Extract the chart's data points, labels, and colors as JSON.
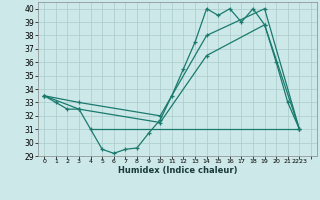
{
  "title": "",
  "xlabel": "Humidex (Indice chaleur)",
  "background_color": "#cde8e8",
  "grid_color": "#aacccc",
  "line_color": "#1a7a6e",
  "xlim": [
    -0.5,
    23.5
  ],
  "ylim": [
    29,
    40.5
  ],
  "yticks": [
    29,
    30,
    31,
    32,
    33,
    34,
    35,
    36,
    37,
    38,
    39,
    40
  ],
  "xtick_positions": [
    0,
    1,
    2,
    3,
    4,
    5,
    6,
    7,
    8,
    9,
    10,
    11,
    12,
    13,
    14,
    15,
    16,
    17,
    18,
    19,
    20,
    21,
    22,
    23
  ],
  "xtick_labels": [
    "0",
    "1",
    "2",
    "3",
    "4",
    "5",
    "6",
    "7",
    "8",
    "9",
    "10",
    "11",
    "12",
    "13",
    "14",
    "15",
    "16",
    "17",
    "18",
    "19",
    "20",
    "21",
    "2223",
    ""
  ],
  "series1_x": [
    0,
    1,
    2,
    3,
    4,
    5,
    6,
    7,
    8,
    9,
    10,
    11,
    12,
    13,
    14,
    15,
    16,
    17,
    18,
    19,
    20,
    21,
    22
  ],
  "series1_y": [
    33.5,
    33.0,
    32.5,
    32.5,
    31.0,
    29.5,
    29.2,
    29.5,
    29.6,
    30.7,
    31.7,
    33.5,
    35.5,
    37.5,
    40.0,
    39.5,
    40.0,
    39.0,
    40.0,
    38.8,
    36.0,
    33.0,
    31.0
  ],
  "series2_x": [
    0,
    3,
    10,
    14,
    19,
    22
  ],
  "series2_y": [
    33.5,
    33.0,
    32.0,
    38.0,
    40.0,
    31.0
  ],
  "series3_x": [
    0,
    3,
    10,
    14,
    19,
    22
  ],
  "series3_y": [
    33.5,
    32.5,
    31.5,
    36.5,
    38.8,
    31.0
  ],
  "hline_y": 31.0,
  "hline_x_start": 4,
  "hline_x_end": 22
}
